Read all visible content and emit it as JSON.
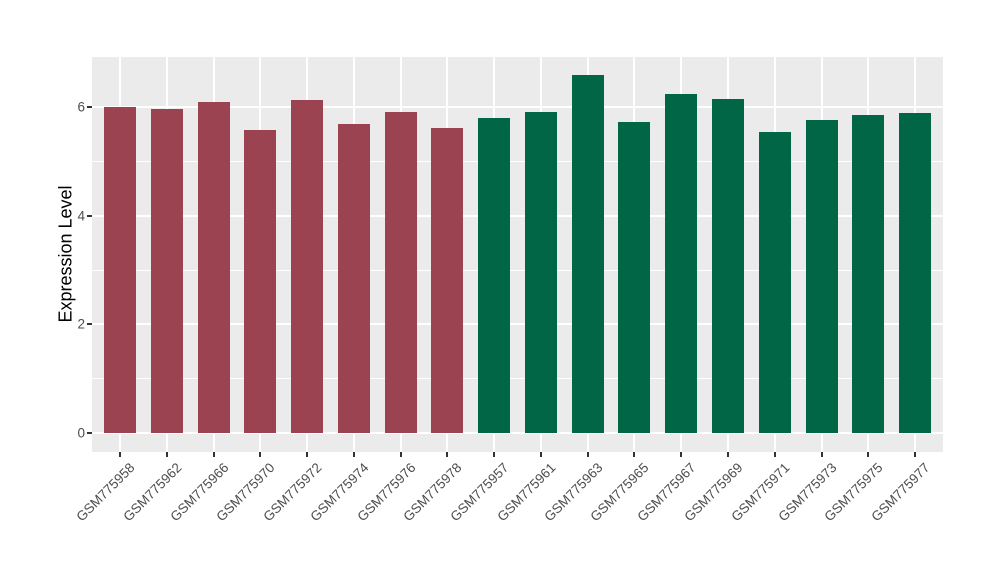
{
  "figure": {
    "background": "#FFFFFF"
  },
  "chart_data": {
    "type": "bar",
    "title": "",
    "xlabel": "",
    "ylabel": "Expression Level",
    "categories": [
      "GSM775958",
      "GSM775962",
      "GSM775966",
      "GSM775970",
      "GSM775972",
      "GSM775974",
      "GSM775976",
      "GSM775978",
      "GSM775957",
      "GSM775961",
      "GSM775963",
      "GSM775965",
      "GSM775967",
      "GSM775969",
      "GSM775971",
      "GSM775973",
      "GSM775975",
      "GSM775977"
    ],
    "values": [
      6.01,
      5.97,
      6.1,
      5.59,
      6.13,
      5.69,
      5.92,
      5.63,
      5.81,
      5.92,
      6.59,
      5.74,
      6.25,
      6.16,
      5.55,
      5.77,
      5.86,
      5.9
    ],
    "groups": [
      "maroon",
      "maroon",
      "maroon",
      "maroon",
      "maroon",
      "maroon",
      "maroon",
      "maroon",
      "green",
      "green",
      "green",
      "green",
      "green",
      "green",
      "green",
      "green",
      "green",
      "green"
    ],
    "group_colors": {
      "maroon": "#9C4351",
      "green": "#006646"
    },
    "yticks": [
      0,
      2,
      4,
      6
    ],
    "ytick_labels": [
      "0",
      "2",
      "4",
      "6"
    ],
    "minor_gridlines_at": [
      1,
      3,
      5
    ],
    "ylim": [
      0,
      6.93
    ],
    "grid": true,
    "legend": false,
    "panel_background": "#EBEBEB",
    "gridline_color": "#FFFFFF",
    "axis_text_color": "#4D4D4D",
    "tick_color": "#333333"
  }
}
